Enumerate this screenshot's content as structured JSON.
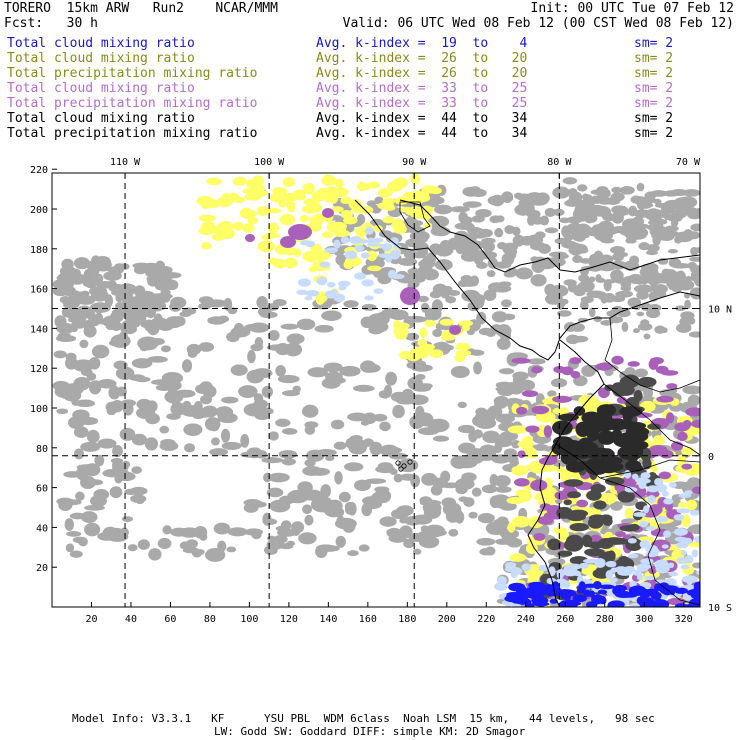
{
  "header": {
    "line1_left": "TORERO  15km ARW   Run2    NCAR/MMM",
    "line2_left": "Fcst:   30 h",
    "line1_right": "Init: 00 UTC Tue 07 Feb 12",
    "line2_right": "Valid: 06 UTC Wed 08 Feb 12 (00 CST Wed 08 Feb 12)"
  },
  "legend": [
    {
      "label": "Total cloud mixing ratio",
      "range": "Avg. k-index =  19  to    4",
      "sm": "sm= 2",
      "color": "#1818c8"
    },
    {
      "label": "Total cloud mixing ratio",
      "range": "Avg. k-index =  26  to   20",
      "sm": "sm= 2",
      "color": "#8a8a1a"
    },
    {
      "label": "Total precipitation mixing ratio",
      "range": "Avg. k-index =  26  to   20",
      "sm": "sm= 2",
      "color": "#8a8a1a"
    },
    {
      "label": "Total cloud mixing ratio",
      "range": "Avg. k-index =  33  to   25",
      "sm": "sm= 2",
      "color": "#b46ec8"
    },
    {
      "label": "Total precipitation mixing ratio",
      "range": "Avg. k-index =  33  to   25",
      "sm": "sm= 2",
      "color": "#b46ec8"
    },
    {
      "label": "Total cloud mixing ratio",
      "range": "Avg. k-index =  44  to   34",
      "sm": "sm= 2",
      "color": "#000000"
    },
    {
      "label": "Total precipitation mixing ratio",
      "range": "Avg. k-index =  44  to   34",
      "sm": "sm= 2",
      "color": "#000000"
    }
  ],
  "map": {
    "lon_labels": [
      "110 W",
      "100 W",
      "90 W",
      "80 W",
      "70 W"
    ],
    "lat_labels": [
      "10 N",
      "0",
      "10 S"
    ],
    "y_ticks": [
      "220",
      "200",
      "180",
      "160",
      "140",
      "120",
      "100",
      "80",
      "60",
      "40",
      "20"
    ],
    "x_ticks": [
      "20",
      "40",
      "60",
      "80",
      "100",
      "120",
      "140",
      "160",
      "180",
      "200",
      "220",
      "240",
      "260",
      "280",
      "300",
      "320"
    ],
    "colors": {
      "gray": "#a9a9a9",
      "dark": "#4a4a4a",
      "yellow": "#ffff66",
      "purple": "#a860b8",
      "lightblue": "#c8dcff",
      "blue": "#1a1aff"
    }
  },
  "footer": {
    "line1": "Model Info: V3.3.1   KF      YSU PBL  WDM 6class  Noah LSM  15 km,   44 levels,   98 sec",
    "line2": "LW: Godd SW: Goddard DIFF: simple KM: 2D Smagor"
  }
}
